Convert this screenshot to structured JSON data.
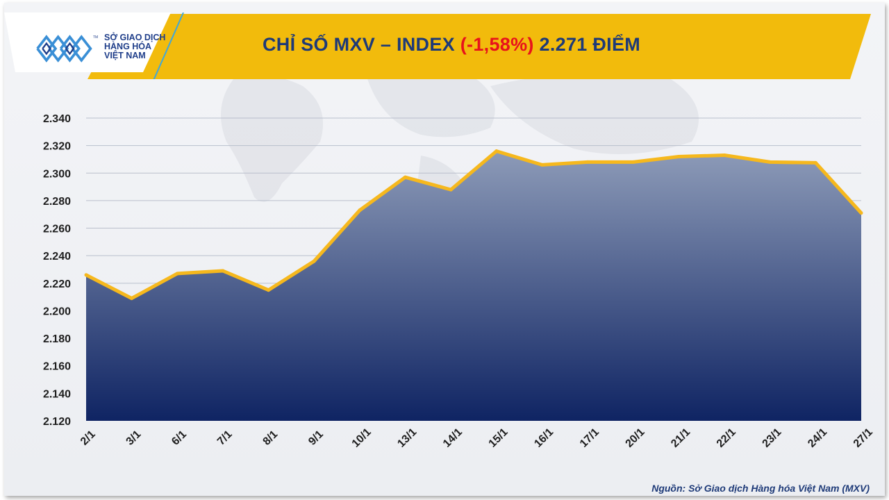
{
  "header": {
    "logo_lines": [
      "SỞ GIAO DỊCH",
      "HÀNG HÓA",
      "VIỆT NAM"
    ],
    "logo_tm": "TM",
    "title_prefix": "CHỈ SỐ MXV – INDEX ",
    "title_change": "(-1,58%)",
    "title_suffix": " 2.271 ĐIỂM"
  },
  "source": "Nguồn: Sở Giao dịch Hàng hóa Việt Nam (MXV)",
  "colors": {
    "banner": "#f2bb0c",
    "line": "#f6b81d",
    "area_top": "#8d9bb8",
    "area_bottom": "#0f2463",
    "title": "#1e3a78",
    "negative": "#e8121b"
  },
  "chart_data": {
    "type": "area",
    "categories": [
      "2/1",
      "3/1",
      "6/1",
      "7/1",
      "8/1",
      "9/1",
      "10/1",
      "13/1",
      "14/1",
      "15/1",
      "16/1",
      "17/1",
      "20/1",
      "21/1",
      "22/1",
      "23/1",
      "24/1",
      "27/1"
    ],
    "values": [
      2226,
      2209,
      2227,
      2229,
      2215,
      2236,
      2273,
      2297,
      2288,
      2316,
      2306,
      2308,
      2308,
      2312,
      2313,
      2308,
      2307.5,
      2271
    ],
    "ylim": [
      2120,
      2340
    ],
    "yticks": [
      2120,
      2140,
      2160,
      2180,
      2200,
      2220,
      2240,
      2260,
      2280,
      2300,
      2320,
      2340
    ],
    "ytick_labels": [
      "2.120",
      "2.140",
      "2.160",
      "2.180",
      "2.200",
      "2.220",
      "2.240",
      "2.260",
      "2.280",
      "2.300",
      "2.320",
      "2.340"
    ],
    "grid": true,
    "legend": "none"
  }
}
